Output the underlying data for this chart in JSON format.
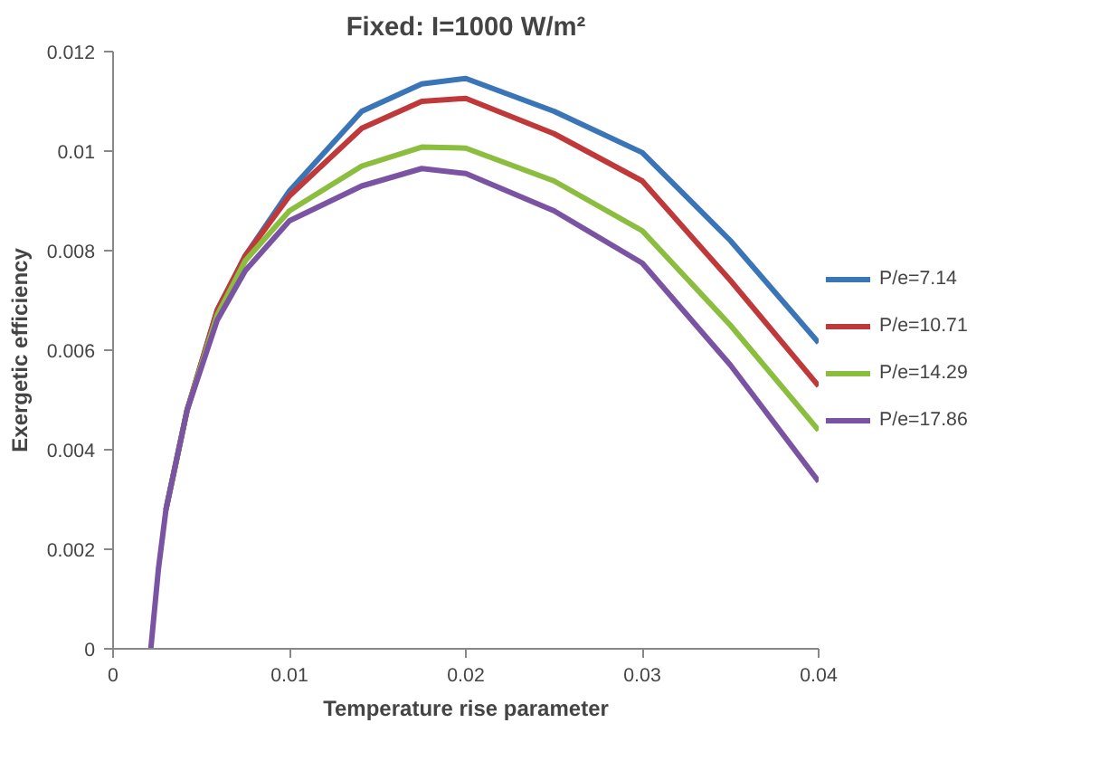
{
  "chart_data": {
    "type": "line",
    "title": "Fixed: I=1000 W/m²",
    "xlabel": "Temperature rise parameter",
    "ylabel": "Exergetic efficiency",
    "x": [
      0.00214,
      0.00257,
      0.003,
      0.0042,
      0.0059,
      0.0075,
      0.01,
      0.0141,
      0.0175,
      0.02,
      0.025,
      0.03,
      0.035,
      0.04
    ],
    "series": [
      {
        "name": "P/e=7.14",
        "color": "#3a75b8",
        "values": [
          null,
          null,
          0.0028,
          0.0048,
          0.0068,
          0.0079,
          0.0092,
          0.0108,
          0.01135,
          0.01146,
          0.0108,
          0.00997,
          0.0082,
          0.00615
        ]
      },
      {
        "name": "P/e=10.71",
        "color": "#c0393a",
        "values": [
          null,
          null,
          0.0028,
          0.0048,
          0.0068,
          0.0079,
          0.0091,
          0.01046,
          0.011,
          0.01106,
          0.01035,
          0.0094,
          0.0074,
          0.00528
        ]
      },
      {
        "name": "P/e=14.29",
        "color": "#8bbd3f",
        "values": [
          null,
          null,
          0.0028,
          0.0048,
          0.0067,
          0.0078,
          0.0088,
          0.0097,
          0.01008,
          0.01006,
          0.0094,
          0.0084,
          0.0065,
          0.00439
        ]
      },
      {
        "name": "P/e=17.86",
        "color": "#7a53a3",
        "values": [
          0,
          0.0016,
          0.0028,
          0.0048,
          0.0066,
          0.0076,
          0.0086,
          0.0093,
          0.00965,
          0.00955,
          0.0088,
          0.00775,
          0.0057,
          0.00336
        ]
      }
    ],
    "xlim": [
      0,
      0.04
    ],
    "ylim": [
      0,
      0.012
    ],
    "xticks": [
      0,
      0.01,
      0.02,
      0.03,
      0.04
    ],
    "yticks": [
      0,
      0.002,
      0.004,
      0.006,
      0.008,
      0.01,
      0.012
    ],
    "grid": false,
    "legend": "right",
    "marker": "none",
    "line_style": "solid"
  }
}
